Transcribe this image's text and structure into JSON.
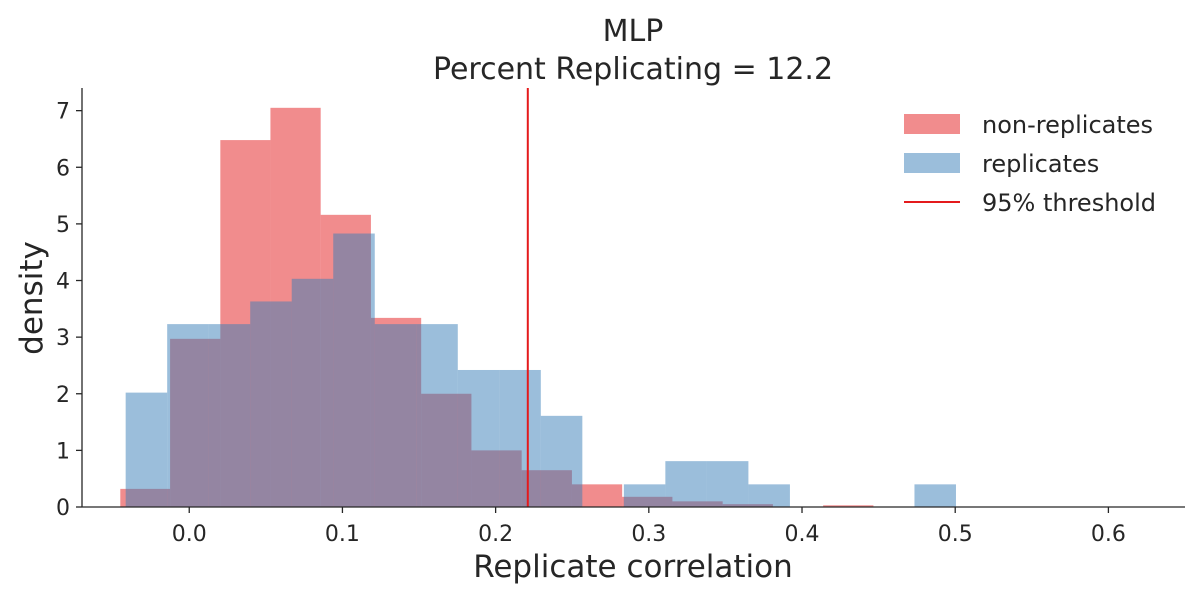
{
  "chart_data": {
    "type": "bar",
    "title": "MLP",
    "subtitle": "Percent Replicating = 12.2",
    "xlabel": "Replicate correlation",
    "ylabel": "density",
    "xlim": [
      -0.07,
      0.65
    ],
    "ylim": [
      0,
      7.4
    ],
    "xticks": [
      0.0,
      0.1,
      0.2,
      0.3,
      0.4,
      0.5,
      0.6
    ],
    "xtick_labels": [
      "0.0",
      "0.1",
      "0.2",
      "0.3",
      "0.4",
      "0.5",
      "0.6"
    ],
    "yticks": [
      0,
      1,
      2,
      3,
      4,
      5,
      6,
      7
    ],
    "ytick_labels": [
      "0",
      "1",
      "2",
      "3",
      "4",
      "5",
      "6",
      "7"
    ],
    "grid": false,
    "legend_position": "top-right",
    "threshold": {
      "label": "95% threshold",
      "x": 0.221,
      "color": "#e41a1c"
    },
    "series": [
      {
        "name": "non-replicates",
        "color": "#e41a1c",
        "opacity": 0.5,
        "bins": [
          {
            "x0": -0.045,
            "x1": -0.0125,
            "y": 0.32
          },
          {
            "x0": -0.0125,
            "x1": 0.0203,
            "y": 2.97
          },
          {
            "x0": 0.0203,
            "x1": 0.053,
            "y": 6.48
          },
          {
            "x0": 0.053,
            "x1": 0.0858,
            "y": 7.05
          },
          {
            "x0": 0.0858,
            "x1": 0.1186,
            "y": 5.16
          },
          {
            "x0": 0.1186,
            "x1": 0.1514,
            "y": 3.34
          },
          {
            "x0": 0.1514,
            "x1": 0.1842,
            "y": 2.0
          },
          {
            "x0": 0.1842,
            "x1": 0.217,
            "y": 1.0
          },
          {
            "x0": 0.217,
            "x1": 0.2498,
            "y": 0.65
          },
          {
            "x0": 0.2498,
            "x1": 0.2826,
            "y": 0.4
          },
          {
            "x0": 0.2826,
            "x1": 0.3154,
            "y": 0.18
          },
          {
            "x0": 0.3154,
            "x1": 0.3482,
            "y": 0.1
          },
          {
            "x0": 0.3482,
            "x1": 0.381,
            "y": 0.05
          },
          {
            "x0": 0.381,
            "x1": 0.4138,
            "y": 0.0
          },
          {
            "x0": 0.4138,
            "x1": 0.4466,
            "y": 0.03
          }
        ]
      },
      {
        "name": "replicates",
        "color": "#377eb8",
        "opacity": 0.5,
        "bins": [
          {
            "x0": -0.0415,
            "x1": -0.0144,
            "y": 2.02
          },
          {
            "x0": -0.0144,
            "x1": 0.0127,
            "y": 3.23
          },
          {
            "x0": 0.0127,
            "x1": 0.0398,
            "y": 3.23
          },
          {
            "x0": 0.0398,
            "x1": 0.0669,
            "y": 3.63
          },
          {
            "x0": 0.0669,
            "x1": 0.094,
            "y": 4.03
          },
          {
            "x0": 0.094,
            "x1": 0.1211,
            "y": 4.83
          },
          {
            "x0": 0.1211,
            "x1": 0.1482,
            "y": 3.23
          },
          {
            "x0": 0.1482,
            "x1": 0.1753,
            "y": 3.23
          },
          {
            "x0": 0.1753,
            "x1": 0.2024,
            "y": 2.42
          },
          {
            "x0": 0.2024,
            "x1": 0.2295,
            "y": 2.42
          },
          {
            "x0": 0.2295,
            "x1": 0.2566,
            "y": 1.61
          },
          {
            "x0": 0.2566,
            "x1": 0.2837,
            "y": 0.0
          },
          {
            "x0": 0.2837,
            "x1": 0.3108,
            "y": 0.4
          },
          {
            "x0": 0.3108,
            "x1": 0.3379,
            "y": 0.81
          },
          {
            "x0": 0.3379,
            "x1": 0.365,
            "y": 0.81
          },
          {
            "x0": 0.365,
            "x1": 0.3921,
            "y": 0.4
          },
          {
            "x0": 0.3921,
            "x1": 0.4192,
            "y": 0.0
          },
          {
            "x0": 0.4192,
            "x1": 0.4463,
            "y": 0.0
          },
          {
            "x0": 0.4463,
            "x1": 0.4734,
            "y": 0.0
          },
          {
            "x0": 0.4734,
            "x1": 0.5005,
            "y": 0.4
          }
        ]
      }
    ]
  }
}
